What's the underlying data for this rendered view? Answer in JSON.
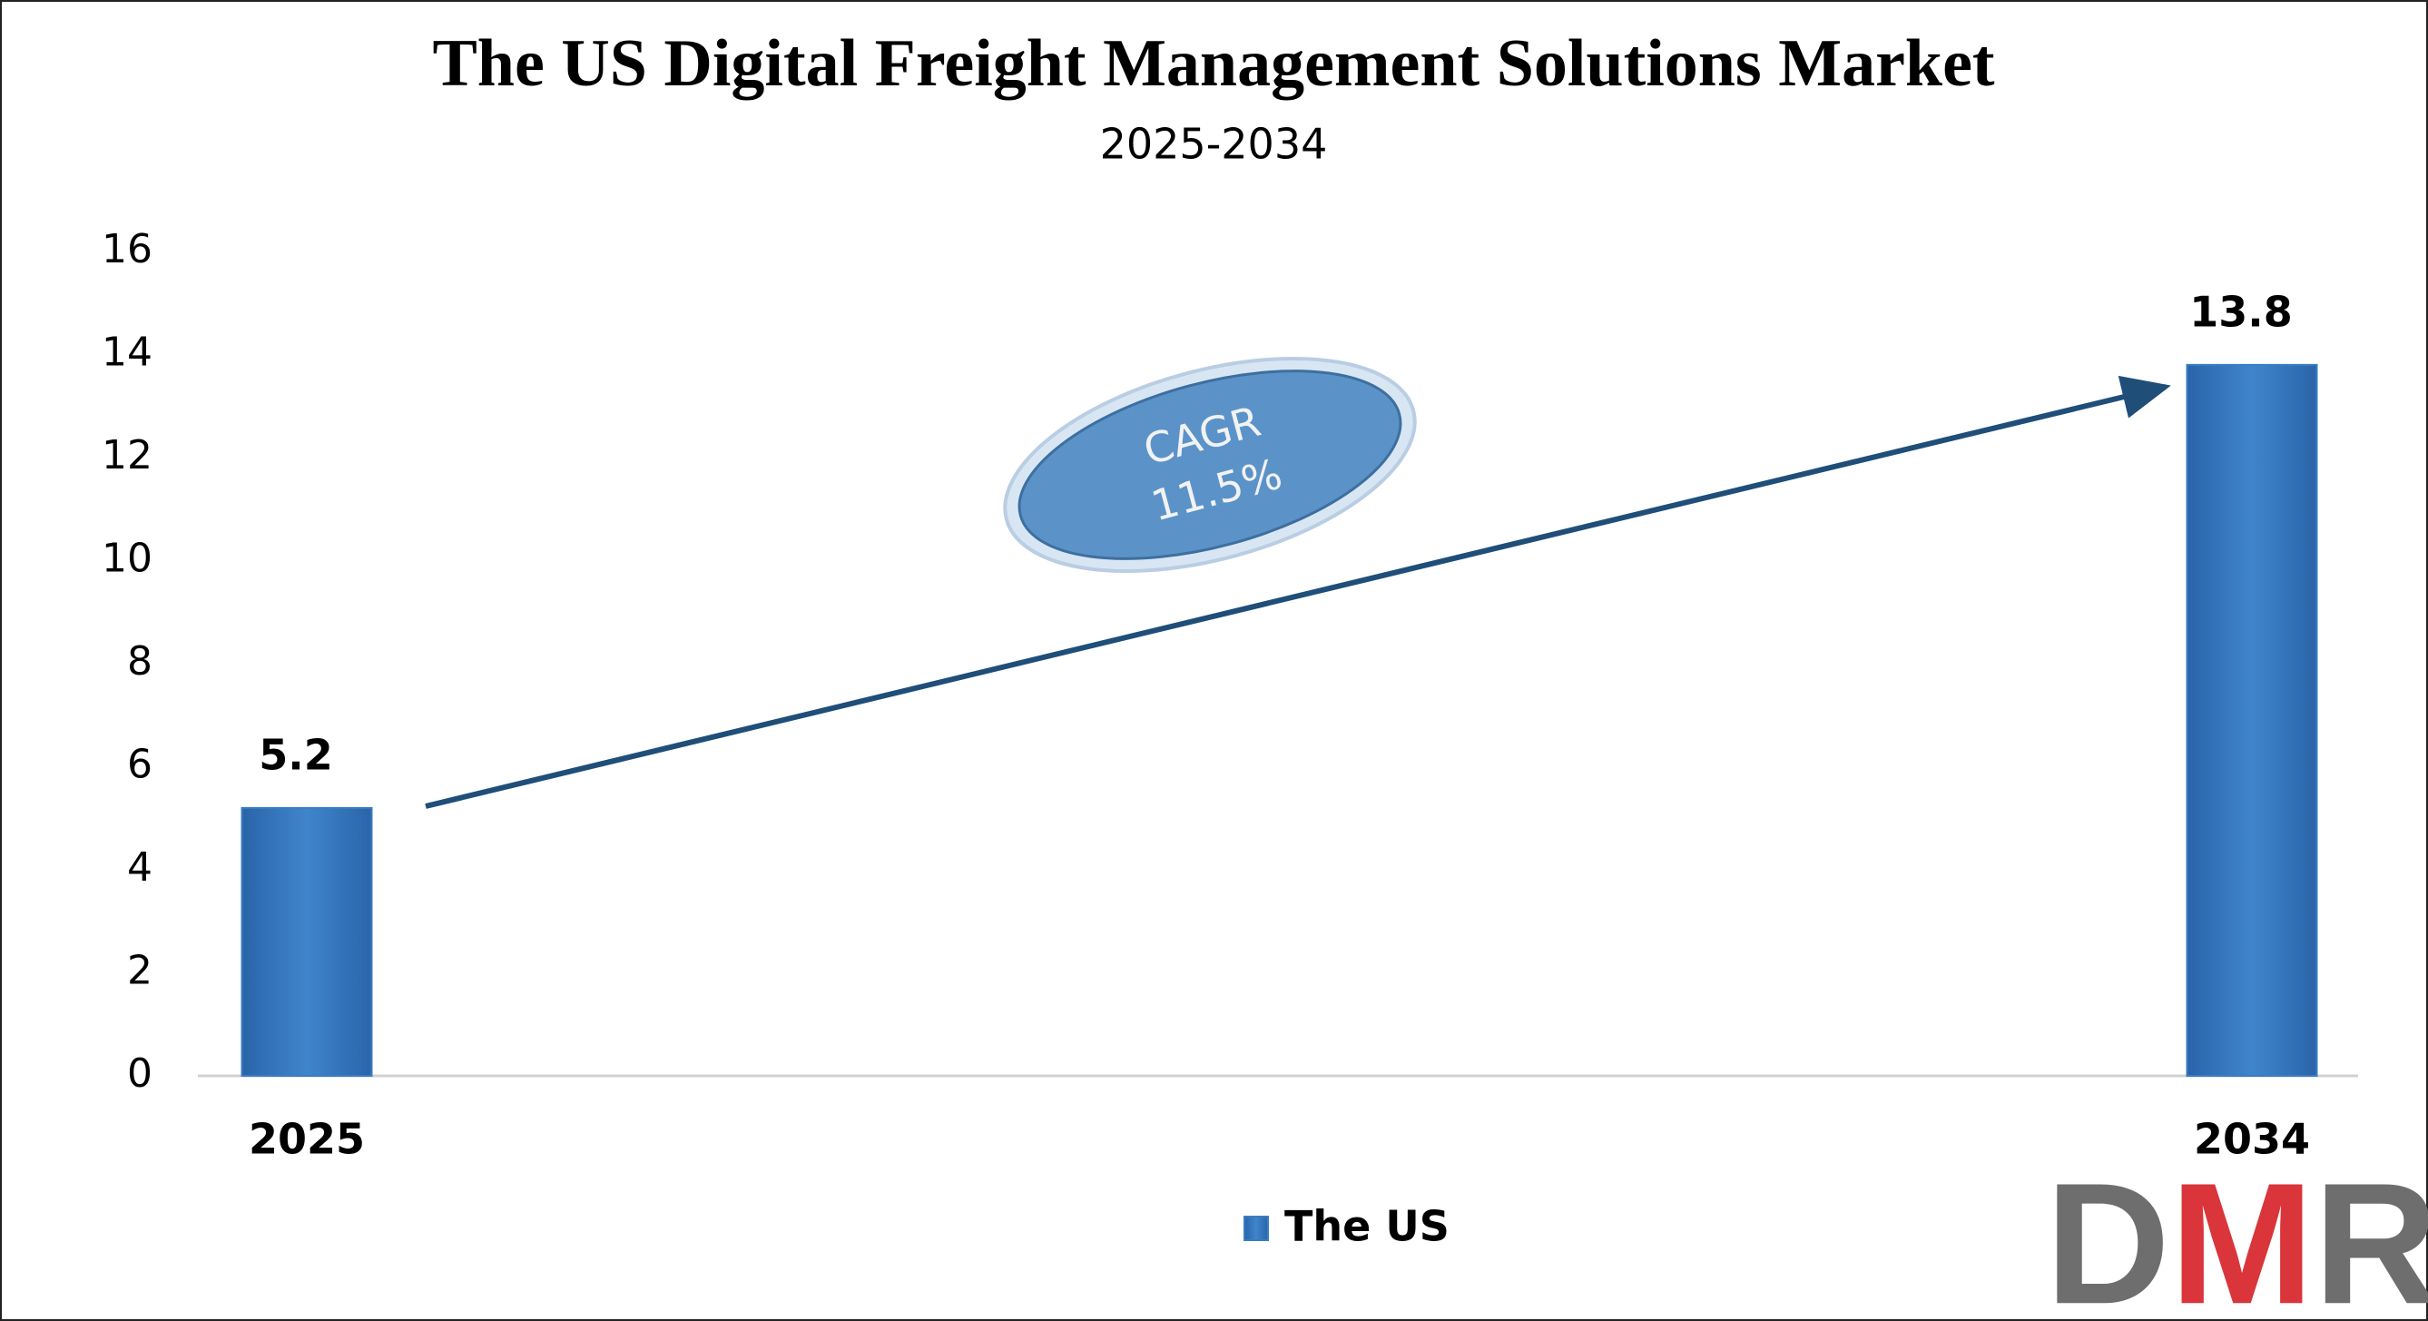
{
  "chart_data": {
    "type": "bar",
    "title": "The US Digital Freight Management Solutions Market",
    "subtitle": "2025-2034",
    "categories": [
      "2025",
      "2034"
    ],
    "series": [
      {
        "name": "The US",
        "color": "#3a7dc4",
        "values": [
          5.2,
          13.8
        ]
      }
    ],
    "ylim": [
      0,
      16
    ],
    "yticks": [
      0,
      2,
      4,
      6,
      8,
      10,
      12,
      14,
      16
    ],
    "annotation": [
      "CAGR",
      "11.5%"
    ],
    "logo": "DMR"
  }
}
